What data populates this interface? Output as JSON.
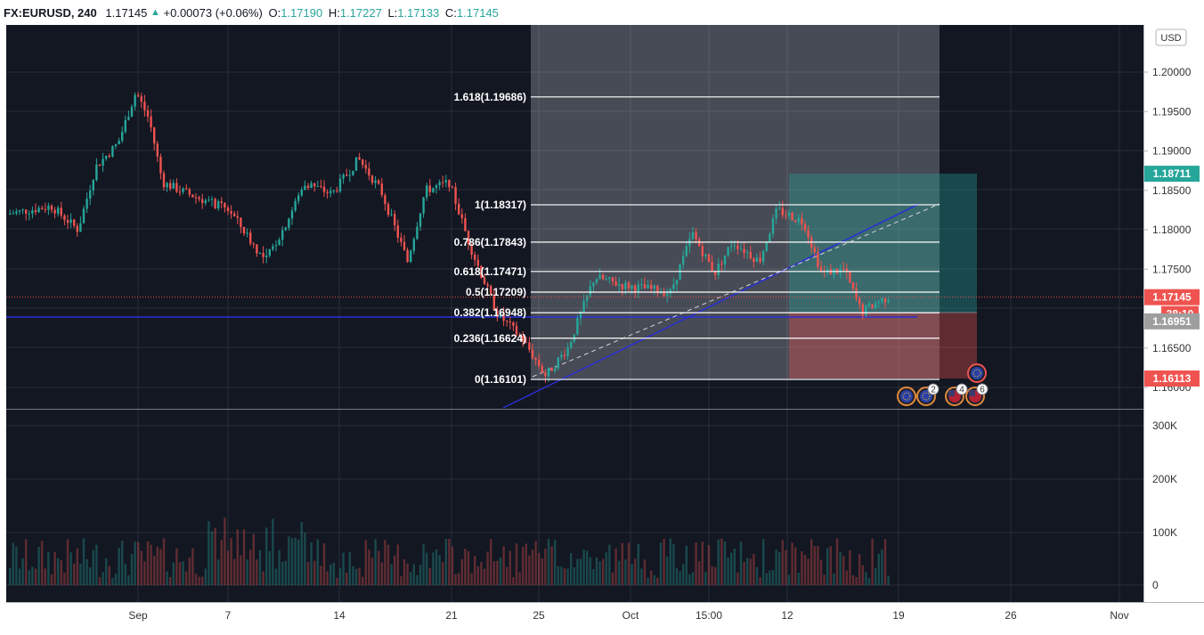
{
  "header": {
    "symbol": "FX:EURUSD, 240",
    "last": "1.17145",
    "change_arrow": "▲",
    "change": "+0.00073 (+0.06%)",
    "o_label": "O:",
    "o_value": "1.17190",
    "h_label": "H:",
    "h_value": "1.17227",
    "l_label": "L:",
    "l_value": "1.17133",
    "c_label": "C:",
    "c_value": "1.17145"
  },
  "colors": {
    "up": "#26a69a",
    "down": "#ef5350",
    "background": "#131722",
    "fib_line": "#ffffff",
    "trendline": "#2a2fd6",
    "profit_zone": "#26a69a",
    "loss_zone": "#ef5350"
  },
  "price_axis": {
    "currency_button": "USD",
    "labels": [
      "1.20000",
      "1.19500",
      "1.19000",
      "1.18500",
      "1.18000",
      "1.17500",
      "1.16500",
      "1.16000"
    ],
    "badges": [
      {
        "text": "1.18711",
        "color": "#26a69a"
      },
      {
        "text": "1.17145",
        "color": "#ef5350"
      },
      {
        "text": "38:10",
        "color": "#ef5350"
      },
      {
        "text": "1.16951",
        "color": "#9e9e9e"
      },
      {
        "text": "1.16113",
        "color": "#ef5350"
      }
    ]
  },
  "volume_axis": {
    "labels": [
      "300K",
      "200K",
      "100K",
      "0"
    ]
  },
  "time_axis": {
    "labels": [
      "Sep",
      "7",
      "14",
      "21",
      "25",
      "Oct",
      "15:00",
      "12",
      "19",
      "26",
      "Nov"
    ]
  },
  "fibonacci": {
    "levels": [
      {
        "label": "1.618(1.19686)",
        "price": 1.19686
      },
      {
        "label": "1(1.18317)",
        "price": 1.18317
      },
      {
        "label": "0.786(1.17843)",
        "price": 1.17843
      },
      {
        "label": "0.618(1.17471)",
        "price": 1.17471
      },
      {
        "label": "0.5(1.17209)",
        "price": 1.17209
      },
      {
        "label": "0.382(1.16948)",
        "price": 1.16948
      },
      {
        "label": "0.236(1.16624)",
        "price": 1.16624
      },
      {
        "label": "0(1.16101)",
        "price": 1.16101
      }
    ]
  },
  "position": {
    "target": 1.18711,
    "entry": 1.16951,
    "stop": 1.16113
  },
  "current_price": 1.17145,
  "event_badges": [
    {
      "icon": "flag-eu-icon",
      "count": ""
    },
    {
      "icon": "flag-eu-icon",
      "count": "2"
    },
    {
      "icon": "flag-us-icon",
      "count": "4"
    },
    {
      "icon": "flag-us-icon",
      "count": "6"
    },
    {
      "icon": "flag-eu-icon",
      "count": ""
    }
  ]
}
